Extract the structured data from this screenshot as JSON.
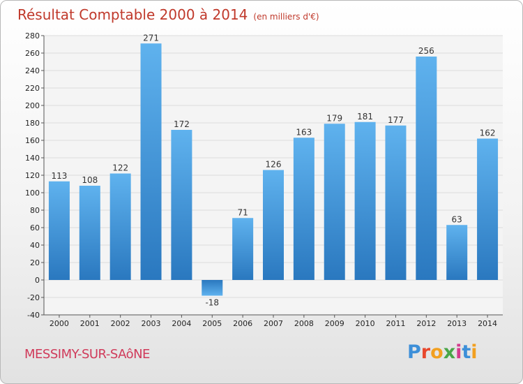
{
  "header": {
    "title": "Résultat Comptable 2000 à 2014",
    "subtitle": "(en milliers d'€)"
  },
  "footer": {
    "commune": "MESSIMY-SUR-SAôNE",
    "logo_text": "Proxiti",
    "logo_colors": [
      "#3d8fd8",
      "#e8482d",
      "#f2a020",
      "#49a648",
      "#d43b8d",
      "#3d8fd8",
      "#f2a020"
    ]
  },
  "colors": {
    "title": "#c0392b",
    "commune": "#d03a5a",
    "bar_top": "#5fb2ee",
    "bar_bottom": "#2a78bf",
    "grid": "#dcdcdc"
  },
  "chart_data": {
    "type": "bar",
    "categories": [
      "2000",
      "2001",
      "2002",
      "2003",
      "2004",
      "2005",
      "2006",
      "2007",
      "2008",
      "2009",
      "2010",
      "2011",
      "2012",
      "2013",
      "2014"
    ],
    "values": [
      113,
      108,
      122,
      271,
      172,
      -18,
      71,
      126,
      163,
      179,
      181,
      177,
      256,
      63,
      162
    ],
    "data_labels": [
      "113",
      "108",
      "122",
      "271",
      "172",
      "-18",
      "71",
      "126",
      "163",
      "179",
      "181",
      "177",
      "256",
      "63",
      "162"
    ],
    "ylim": [
      -40,
      280
    ],
    "yticks": [
      -40,
      -20,
      0,
      20,
      40,
      60,
      80,
      100,
      120,
      140,
      160,
      180,
      200,
      220,
      240,
      260,
      280
    ],
    "grid": true,
    "xlabel": "",
    "ylabel": ""
  }
}
